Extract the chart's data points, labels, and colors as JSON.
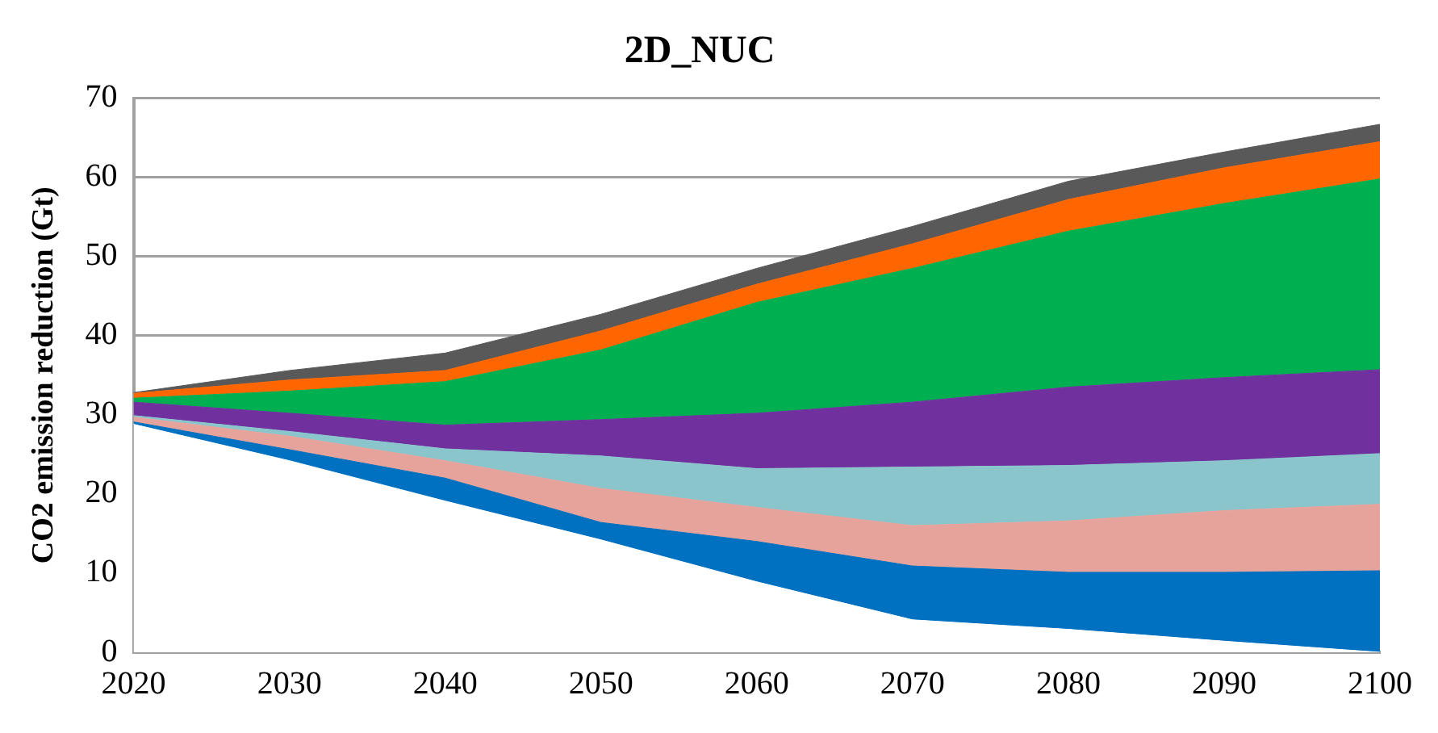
{
  "chart_data": {
    "type": "area",
    "title": "2D_NUC",
    "ylabel": "CO2 emission reduction (Gt)",
    "categories": [
      "2020",
      "2030",
      "2040",
      "2050",
      "2060",
      "2070",
      "2080",
      "2090",
      "2100"
    ],
    "stacked": true,
    "marker": "none",
    "grid": "y",
    "ylim": [
      0,
      70
    ],
    "yticks": [
      0,
      10,
      20,
      30,
      40,
      50,
      60,
      70
    ],
    "series": [
      {
        "color": "#ffffff",
        "values": [
          28.8,
          24.2,
          19.1,
          14.2,
          8.9,
          4.1,
          2.9,
          1.4,
          0
        ]
      },
      {
        "color": "#0070c0",
        "values": [
          0.3,
          1.4,
          2.9,
          2.2,
          5.1,
          6.8,
          7.2,
          8.7,
          10.3
        ]
      },
      {
        "color": "#e6a39c",
        "values": [
          0.6,
          1.7,
          2.2,
          4.3,
          4.3,
          5.1,
          6.5,
          7.8,
          8.4
        ]
      },
      {
        "color": "#8bc5cc",
        "values": [
          0.2,
          0.6,
          1.5,
          4.1,
          4.9,
          7.4,
          7.0,
          6.3,
          6.4
        ]
      },
      {
        "color": "#70309e",
        "values": [
          1.7,
          2.3,
          3.0,
          4.6,
          7.0,
          8.2,
          9.9,
          10.5,
          10.6
        ]
      },
      {
        "color": "#00b050",
        "values": [
          0.5,
          2.8,
          5.5,
          8.8,
          14.0,
          16.9,
          19.7,
          22.0,
          24.1
        ]
      },
      {
        "color": "#ff6600",
        "values": [
          0.6,
          1.4,
          1.4,
          2.4,
          2.3,
          3.1,
          4.0,
          4.5,
          4.7
        ]
      },
      {
        "color": "#595959",
        "values": [
          0.1,
          1.2,
          2.2,
          2.1,
          2.0,
          2.2,
          2.3,
          2.0,
          2.2
        ]
      }
    ]
  }
}
